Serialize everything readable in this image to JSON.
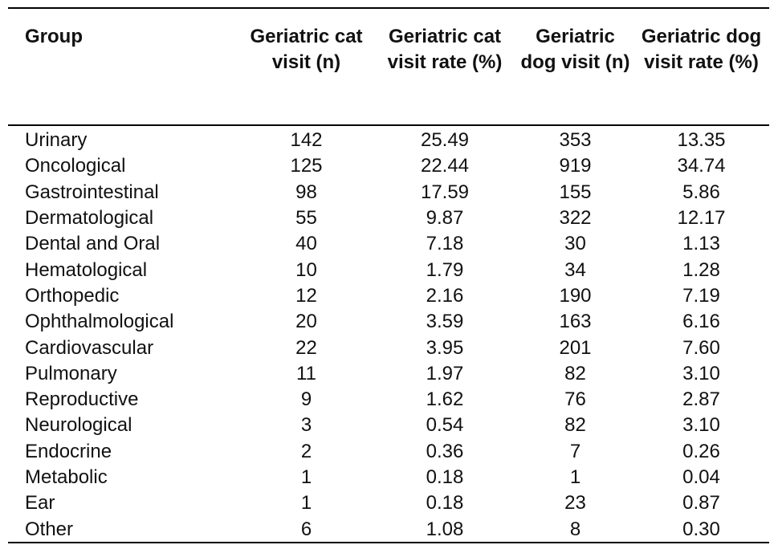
{
  "table": {
    "headers": [
      "Group",
      "Geriatric cat visit (n)",
      "Geriatric cat visit rate (%)",
      "Geriatric dog visit (n)",
      "Geriatric dog visit rate (%)"
    ],
    "rows": [
      [
        "Urinary",
        "142",
        "25.49",
        "353",
        "13.35"
      ],
      [
        "Oncological",
        "125",
        "22.44",
        "919",
        "34.74"
      ],
      [
        "Gastrointestinal",
        "98",
        "17.59",
        "155",
        "5.86"
      ],
      [
        "Dermatological",
        "55",
        "9.87",
        "322",
        "12.17"
      ],
      [
        "Dental and Oral",
        "40",
        "7.18",
        "30",
        "1.13"
      ],
      [
        "Hematological",
        "10",
        "1.79",
        "34",
        "1.28"
      ],
      [
        "Orthopedic",
        "12",
        "2.16",
        "190",
        "7.19"
      ],
      [
        "Ophthalmological",
        "20",
        "3.59",
        "163",
        "6.16"
      ],
      [
        "Cardiovascular",
        "22",
        "3.95",
        "201",
        "7.60"
      ],
      [
        "Pulmonary",
        "11",
        "1.97",
        "82",
        "3.10"
      ],
      [
        "Reproductive",
        "9",
        "1.62",
        "76",
        "2.87"
      ],
      [
        "Neurological",
        "3",
        "0.54",
        "82",
        "3.10"
      ],
      [
        "Endocrine",
        "2",
        "0.36",
        "7",
        "0.26"
      ],
      [
        "Metabolic",
        "1",
        "0.18",
        "1",
        "0.04"
      ],
      [
        "Ear",
        "1",
        "0.18",
        "23",
        "0.87"
      ],
      [
        "Other",
        "6",
        "1.08",
        "8",
        "0.30"
      ]
    ]
  }
}
